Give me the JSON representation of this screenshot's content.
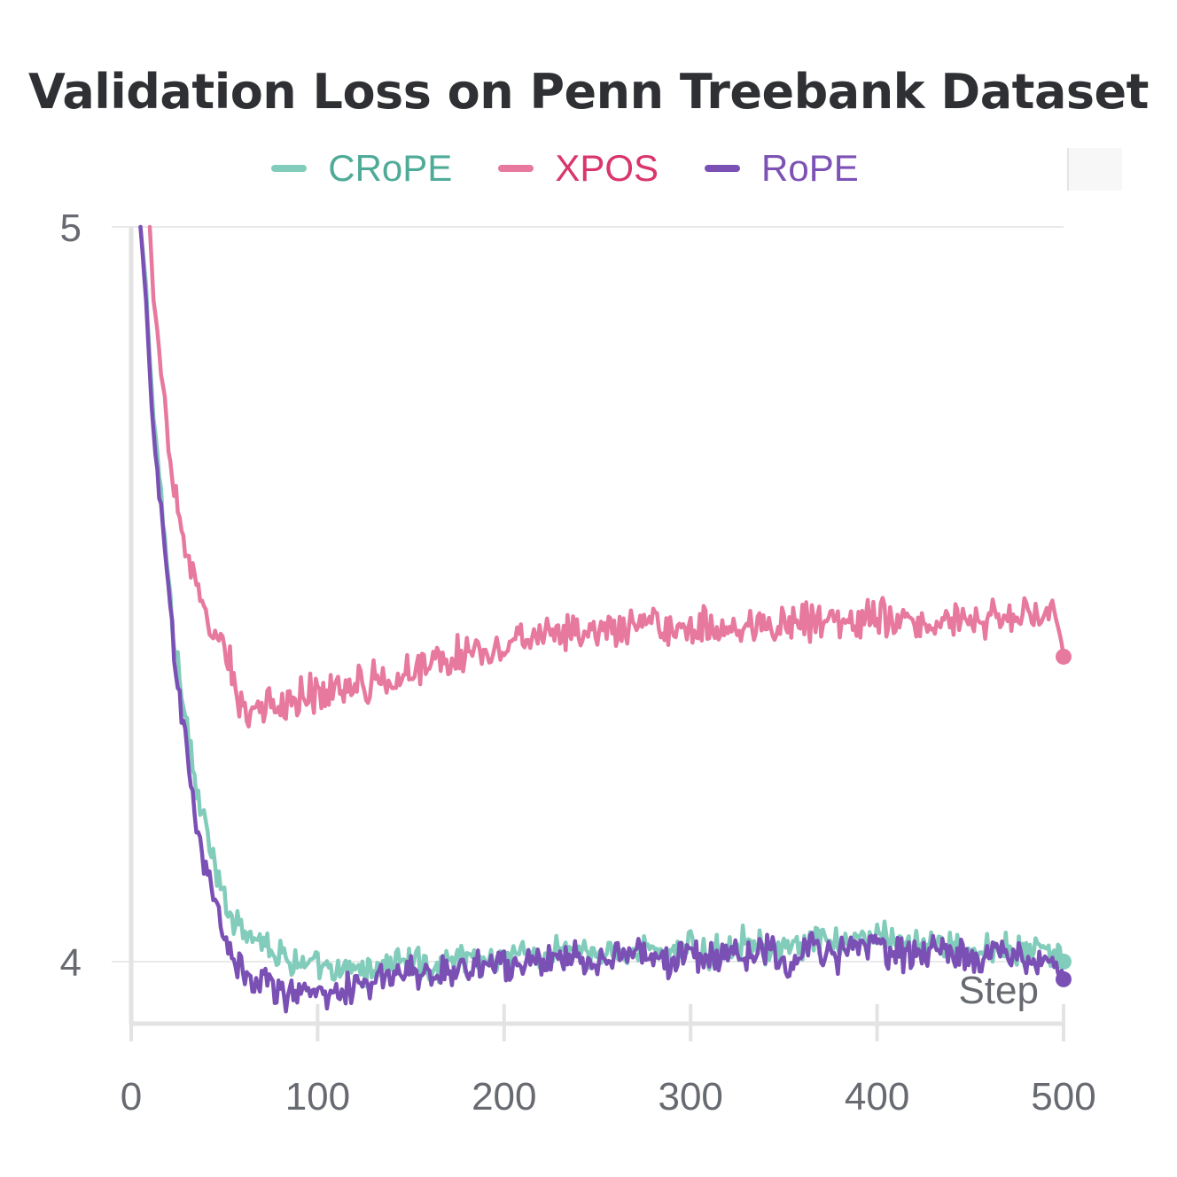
{
  "colors": {
    "crope": "#82ccbb",
    "crope_text": "#4fab98",
    "xpos": "#e8799e",
    "xpos_text": "#d9366b",
    "rope": "#7b50b5",
    "rope_text": "#7c52b5",
    "axis": "#e3e3e3",
    "grid": "#e9e9e9",
    "tick_text": "#676a70",
    "title_text": "#2f3033"
  },
  "chart_data": {
    "type": "line",
    "title": "Validation Loss on Penn Treebank Dataset",
    "xlabel": "Step",
    "ylabel": "",
    "xlim": [
      0,
      500
    ],
    "ylim": [
      3.92,
      5.0
    ],
    "x_ticks": [
      0,
      100,
      200,
      300,
      400,
      500
    ],
    "y_ticks": [
      4,
      5
    ],
    "legend_position": "top-center",
    "grid": true,
    "series": [
      {
        "name": "CRoPE",
        "color": "#82ccbb",
        "label_color": "#4fab98",
        "end_marker": true,
        "x": [
          5,
          8,
          10,
          12,
          15,
          18,
          20,
          22,
          25,
          28,
          30,
          33,
          35,
          38,
          40,
          43,
          45,
          48,
          50,
          55,
          60,
          65,
          70,
          75,
          80,
          90,
          100,
          110,
          120,
          130,
          140,
          150,
          160,
          170,
          180,
          190,
          200,
          210,
          220,
          230,
          240,
          250,
          260,
          270,
          280,
          290,
          300,
          310,
          320,
          330,
          340,
          350,
          360,
          370,
          380,
          390,
          400,
          410,
          420,
          430,
          440,
          450,
          460,
          470,
          480,
          490,
          500
        ],
        "y": [
          5.0,
          4.92,
          4.82,
          4.74,
          4.66,
          4.58,
          4.52,
          4.46,
          4.41,
          4.36,
          4.32,
          4.27,
          4.23,
          4.2,
          4.18,
          4.15,
          4.12,
          4.1,
          4.08,
          4.06,
          4.05,
          4.04,
          4.03,
          4.02,
          4.01,
          4.0,
          3.99,
          3.98,
          3.99,
          3.99,
          4.0,
          4.0,
          3.99,
          4.0,
          4.01,
          4.0,
          4.01,
          4.01,
          4.0,
          4.02,
          4.01,
          4.0,
          4.02,
          4.01,
          4.02,
          4.01,
          4.02,
          4.01,
          4.02,
          4.03,
          4.02,
          4.01,
          4.02,
          4.03,
          4.02,
          4.03,
          4.04,
          4.03,
          4.02,
          4.03,
          4.02,
          4.01,
          4.02,
          4.02,
          4.01,
          4.02,
          4.0
        ],
        "noise": 0.016
      },
      {
        "name": "XPOS",
        "color": "#e8799e",
        "label_color": "#d9366b",
        "end_marker": true,
        "x": [
          10,
          12,
          15,
          18,
          20,
          22,
          25,
          28,
          30,
          33,
          35,
          38,
          40,
          45,
          50,
          55,
          60,
          70,
          80,
          90,
          100,
          110,
          120,
          130,
          140,
          150,
          160,
          170,
          180,
          190,
          200,
          210,
          220,
          230,
          240,
          250,
          260,
          270,
          280,
          290,
          300,
          310,
          320,
          330,
          340,
          350,
          360,
          370,
          380,
          390,
          400,
          410,
          420,
          430,
          440,
          450,
          460,
          470,
          480,
          490,
          495,
          500
        ],
        "y": [
          5.0,
          4.9,
          4.83,
          4.76,
          4.7,
          4.66,
          4.62,
          4.58,
          4.55,
          4.52,
          4.5,
          4.48,
          4.46,
          4.44,
          4.43,
          4.38,
          4.35,
          4.34,
          4.35,
          4.36,
          4.37,
          4.37,
          4.38,
          4.38,
          4.39,
          4.4,
          4.41,
          4.41,
          4.42,
          4.43,
          4.43,
          4.44,
          4.44,
          4.44,
          4.45,
          4.44,
          4.45,
          4.45,
          4.46,
          4.45,
          4.45,
          4.46,
          4.45,
          4.46,
          4.46,
          4.46,
          4.47,
          4.46,
          4.47,
          4.46,
          4.47,
          4.46,
          4.47,
          4.46,
          4.47,
          4.46,
          4.47,
          4.46,
          4.47,
          4.47,
          4.48,
          4.415
        ],
        "noise": 0.02
      },
      {
        "name": "RoPE",
        "color": "#7b50b5",
        "label_color": "#7c52b5",
        "end_marker": true,
        "x": [
          5,
          8,
          10,
          12,
          15,
          18,
          20,
          22,
          25,
          28,
          30,
          33,
          35,
          38,
          40,
          43,
          45,
          48,
          50,
          55,
          60,
          65,
          70,
          75,
          80,
          90,
          100,
          110,
          120,
          130,
          140,
          150,
          160,
          170,
          180,
          190,
          200,
          210,
          220,
          230,
          240,
          250,
          260,
          270,
          280,
          290,
          300,
          310,
          320,
          330,
          340,
          350,
          360,
          370,
          380,
          390,
          400,
          410,
          420,
          430,
          440,
          450,
          460,
          470,
          480,
          490,
          500
        ],
        "y": [
          5.0,
          4.9,
          4.8,
          4.72,
          4.64,
          4.56,
          4.5,
          4.44,
          4.38,
          4.33,
          4.28,
          4.23,
          4.19,
          4.16,
          4.13,
          4.1,
          4.07,
          4.05,
          4.03,
          4.01,
          3.99,
          3.98,
          3.97,
          3.97,
          3.96,
          3.96,
          3.96,
          3.96,
          3.97,
          3.97,
          3.98,
          3.98,
          3.98,
          3.99,
          3.99,
          4.0,
          4.0,
          4.0,
          4.0,
          4.01,
          4.0,
          4.0,
          4.01,
          4.01,
          4.01,
          4.0,
          4.01,
          4.0,
          4.01,
          4.01,
          4.01,
          4.0,
          4.01,
          4.02,
          4.01,
          4.02,
          4.02,
          4.01,
          4.01,
          4.02,
          4.01,
          4.0,
          4.01,
          4.01,
          4.0,
          4.01,
          3.976
        ],
        "noise": 0.018
      }
    ]
  }
}
